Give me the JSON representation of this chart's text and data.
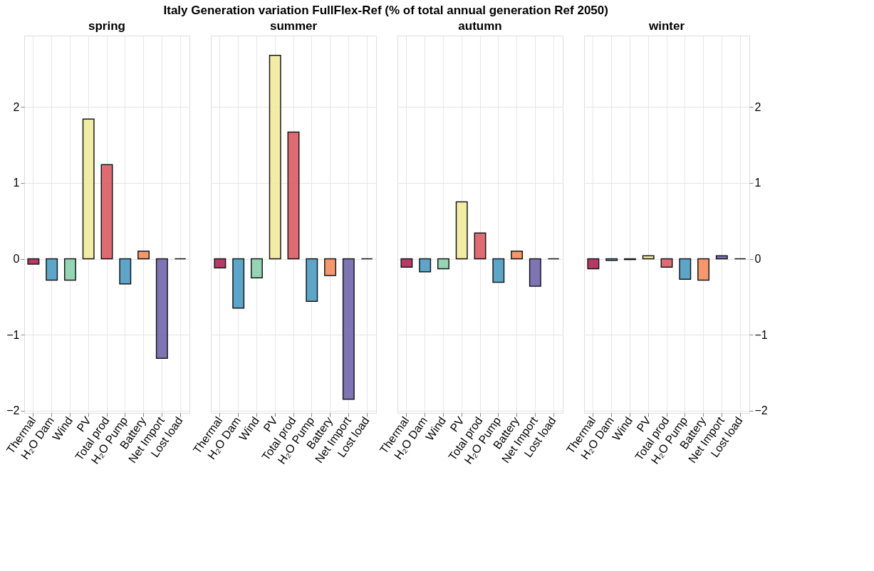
{
  "chart_data": [
    {
      "type": "bar",
      "title": "Italy  Generation variation FullFlex-Ref (% of total annual generation Ref 2050)",
      "subtitle": "spring",
      "categories": [
        "Thermal",
        "H₂O Dam",
        "Wind",
        "PV",
        "Total prod",
        "H₂O Pump",
        "Battery",
        "Net Import",
        "Lost load"
      ],
      "values": [
        -0.07,
        -0.28,
        -0.28,
        1.84,
        1.24,
        -0.33,
        0.1,
        -1.31,
        0
      ],
      "colors": [
        "#b02456",
        "#4a9dc4",
        "#88d1ae",
        "#f2ea9c",
        "#dd5c63",
        "#4a9dc4",
        "#f68d59",
        "#7265ac",
        "#000000"
      ],
      "ylim": [
        -2.03,
        2.94
      ],
      "yticks": [
        -2,
        -1,
        0,
        1,
        2
      ],
      "grid": true
    },
    {
      "type": "bar",
      "subtitle": "summer",
      "categories": [
        "Thermal",
        "H₂O Dam",
        "Wind",
        "PV",
        "Total prod",
        "H₂O Pump",
        "Battery",
        "Net Import",
        "Lost load"
      ],
      "values": [
        -0.12,
        -0.65,
        -0.25,
        2.68,
        1.67,
        -0.56,
        -0.22,
        -1.85,
        0
      ],
      "colors": [
        "#b02456",
        "#4a9dc4",
        "#88d1ae",
        "#f2ea9c",
        "#dd5c63",
        "#4a9dc4",
        "#f68d59",
        "#7265ac",
        "#000000"
      ],
      "ylim": [
        -2.03,
        2.94
      ],
      "yticks": [
        -2,
        -1,
        0,
        1,
        2
      ],
      "grid": true,
      "tick_labels": "x"
    },
    {
      "type": "bar",
      "subtitle": "autumn",
      "categories": [
        "Thermal",
        "H₂O Dam",
        "Wind",
        "PV",
        "Total prod",
        "H₂O Pump",
        "Battery",
        "Net Import",
        "Lost load"
      ],
      "values": [
        -0.11,
        -0.17,
        -0.13,
        0.75,
        0.34,
        -0.31,
        0.1,
        -0.36,
        0
      ],
      "colors": [
        "#b02456",
        "#4a9dc4",
        "#88d1ae",
        "#f2ea9c",
        "#dd5c63",
        "#4a9dc4",
        "#f68d59",
        "#7265ac",
        "#000000"
      ],
      "ylim": [
        -2.03,
        2.94
      ],
      "yticks": [
        -2,
        -1,
        0,
        1,
        2
      ],
      "grid": true,
      "tick_labels": "x"
    },
    {
      "type": "bar",
      "subtitle": "winter",
      "categories": [
        "Thermal",
        "H₂O Dam",
        "Wind",
        "PV",
        "Total prod",
        "H₂O Pump",
        "Battery",
        "Net Import",
        "Lost load"
      ],
      "values": [
        -0.13,
        -0.02,
        -0.01,
        0.04,
        -0.11,
        -0.27,
        -0.28,
        0.04,
        0
      ],
      "colors": [
        "#b02456",
        "#4a9dc4",
        "#88d1ae",
        "#f2ea9c",
        "#dd5c63",
        "#4a9dc4",
        "#f68d59",
        "#7265ac",
        "#000000"
      ],
      "ylim": [
        -2.03,
        2.94
      ],
      "yticks": [
        -2,
        -1,
        0,
        1,
        2
      ],
      "grid": true
    }
  ]
}
